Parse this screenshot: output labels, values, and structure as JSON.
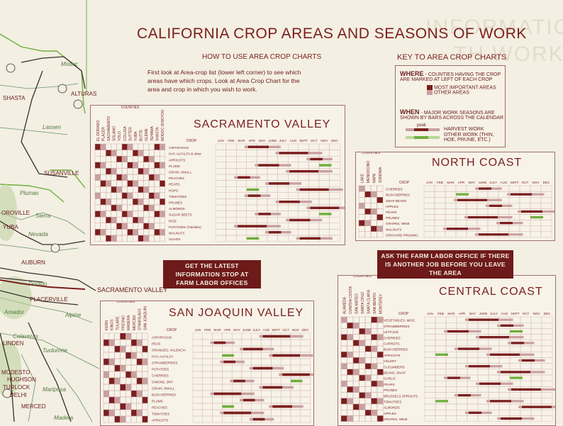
{
  "header": {
    "title": "CALIFORNIA CROP AREAS AND SEASONS OF WORK",
    "how_to_heading": "HOW TO USE AREA CROP CHARTS",
    "how_to_text": "First look at Area-crop list (lower left corner) to see which areas have which crops. Look at Area Crop Chart for the area and crop in which you wish to work.",
    "key_heading": "KEY TO  AREA CROP CHARTS"
  },
  "key": {
    "where_label": "WHERE",
    "where_text": "- COUNTIES HAVING THE CROP ARE MARKED AT LEFT OF EACH CROP",
    "most_important": "MOST IMPORTANT AREAS",
    "other_areas": "OTHER AREAS",
    "when_label": "WHEN",
    "when_text": "- MAJOR WORK SEASONS ARE SHOWN BY BARS ACROSS THE CALENDAR",
    "peak": "peak",
    "harvest_work": "HARVEST WORK",
    "other_work": "OTHER WORK (THIN, HOE, PRUNE, ETC.)"
  },
  "banners": {
    "latest": "GET THE LATEST INFORMATION STOP AT FARM LABOR OFFICES",
    "ask": "ASK THE FARM LABOR OFFICE IF THERE IS ANOTHER JOB BEFORE YOU LEAVE THE AREA"
  },
  "map_labels": {
    "modoc": "Modoc",
    "shasta": "SHASTA",
    "alturas": "ALTURAS",
    "lassen": "Lassen",
    "susanville": "SUSANVILLE",
    "plumas": "Plumas",
    "oroville": "OROVILLE",
    "sierra": "Sierra",
    "yuba": "YUBA",
    "nevada": "Nevada",
    "auburn": "AUBURN",
    "placerville": "PLACERVILLE",
    "sacramento_valley": "SACRAMENTO VALLEY",
    "dorado": "Dorado",
    "amador": "Amador",
    "alpine": "Alpine",
    "calaveras": "Calaveras",
    "tuolumne": "Tuolumne",
    "linden": "LINDEN",
    "modesto": "MODESTO",
    "hughson": "HUGHSON",
    "turlock": "TURLOCK",
    "delhi": "DELHI",
    "merced": "MERCED",
    "mariposa": "Mariposa",
    "madera": "Madera"
  },
  "months": [
    "JAN",
    "FEB",
    "MAR",
    "APR",
    "MAY",
    "JUNE",
    "JULY",
    "AUG",
    "SEPT",
    "OCT",
    "NOV",
    "DEC"
  ],
  "months_sac": [
    "JAN",
    "FEB",
    "MAR",
    "APR",
    "MAY",
    "JUNE",
    "JULY",
    "AUG",
    "SEPT",
    "OCT",
    "NOV",
    "DEC"
  ],
  "crop_header": "CROP",
  "counties_header": "COUNTIES",
  "sacramento": {
    "title": "SACRAMENTO VALLEY",
    "counties": [
      "EL DORADO",
      "PLACER",
      "SACRAMENTO",
      "SOLANO",
      "YOLO",
      "COLUSA",
      "SUTTER",
      "YUBA",
      "BUTTE",
      "GLENN",
      "TEHAMA",
      "SHASTA",
      "MODOC-SISKIYOU"
    ],
    "crops": [
      "ASPARAGUS",
      "HAY, ALFALFA & other",
      "APRICOTS",
      "PLUMS",
      "GRAIN, SMALL",
      "PEACHES",
      "PEARS",
      "HOPS",
      "TOMATOES",
      "PRUNES",
      "ALMONDS",
      "SUGAR BEETS",
      "RICE",
      "POTATOES (Tulelake)",
      "WALNUTS",
      "OLIVES"
    ]
  },
  "north_coast": {
    "title": "NORTH COAST",
    "counties": [
      "LAKE",
      "MENDOCINO",
      "NAPA",
      "SONOMA"
    ],
    "crops": [
      "CHERRIES",
      "BUSH BERRIES",
      "SNAP BEANS",
      "APPLES",
      "PEARS",
      "PRUNES",
      "GRAPES, WINE",
      "WALNUTS",
      "ORCHARD PRUNING"
    ]
  },
  "san_joaquin": {
    "title": "SAN JOAQUIN VALLEY",
    "counties": [
      "KERN",
      "KINGS",
      "TULARE",
      "FRESNO",
      "MADERA",
      "MERCED",
      "STANISLAUS",
      "SAN JOAQUIN"
    ],
    "crops": [
      "ASPARAGUS",
      "PEAS",
      "ORANGES, VALENCIA",
      "HAY, ALFALFA",
      "STRAWBERRIES",
      "POTATOES",
      "CHERRIES",
      "ONIONS, DRY",
      "GRAIN, SMALL",
      "BUSH BERRIES",
      "PLUMS",
      "PEACHES",
      "TOMATOES",
      "APRICOTS"
    ]
  },
  "central_coast": {
    "title": "CENTRAL COAST",
    "counties": [
      "ALAMEDA",
      "CONTRA COSTA",
      "SAN MATEO",
      "SANTA CRUZ",
      "SANTA CLARA",
      "SAN BENITO",
      "MONTEREY"
    ],
    "crops": [
      "VEGETABLES, MISC.",
      "STRAWBERRIES",
      "LETTUCE",
      "CHERRIES",
      "CARROTS",
      "BUSH BERRIES",
      "APRICOTS",
      "CELERY",
      "CUCUMBERS",
      "BEANS, SNAP",
      "GARLIC",
      "PEARS",
      "PRUNES",
      "BRUSSELS SPROUTS",
      "TOMATOES",
      "ALMONDS",
      "APPLES",
      "GRAPES, WINE"
    ]
  },
  "colors": {
    "maroon": "#7a1e1e",
    "light": "#c9a0a0",
    "green": "#6fae3c",
    "lightgreen": "#b8d89a",
    "paper": "#f3efe2"
  }
}
